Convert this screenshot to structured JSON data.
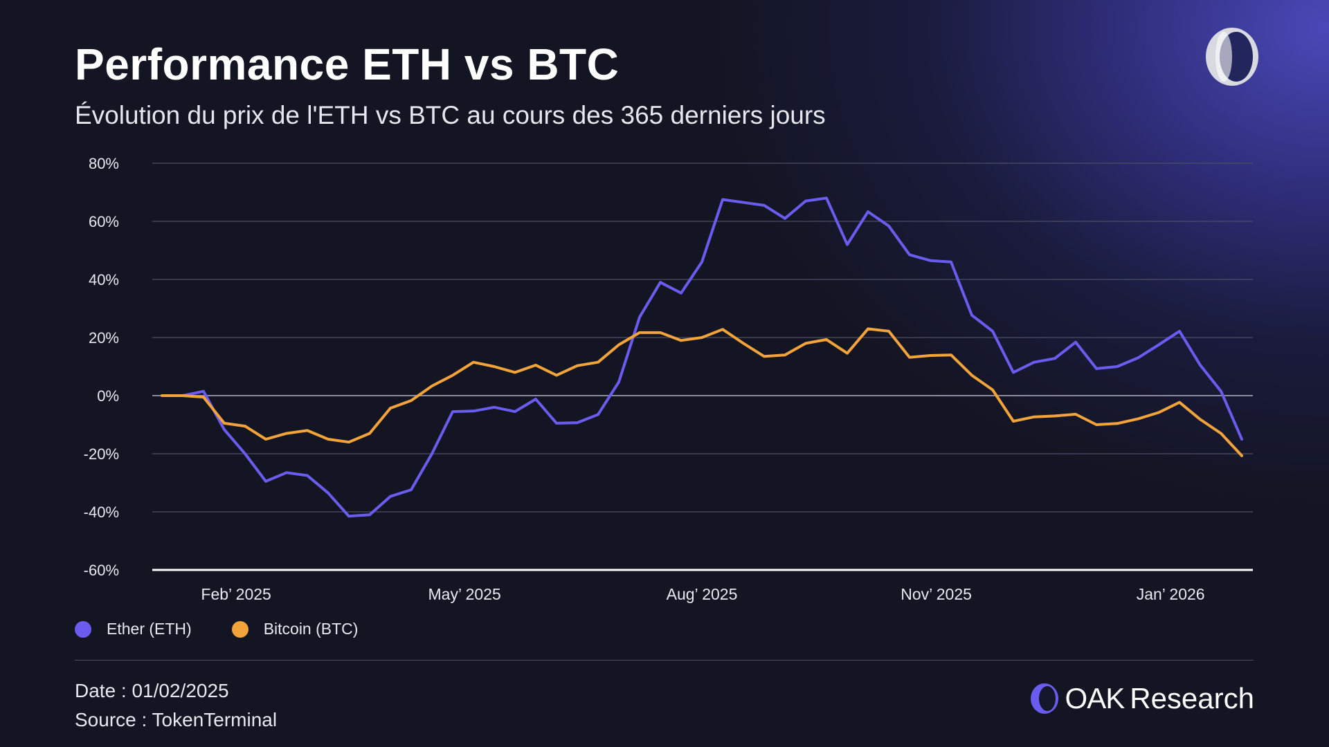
{
  "header": {
    "title": "Performance ETH vs BTC",
    "subtitle": "Évolution du prix de l'ETH vs BTC au cours des 365 derniers jours"
  },
  "footer": {
    "date": "Date : 01/02/2025",
    "source": "Source : TokenTerminal",
    "brand_bold": "OAK",
    "brand_rest": "Research"
  },
  "colors": {
    "eth": "#6b5cf0",
    "btc": "#f2a33a",
    "grid": "#4c4e66",
    "axis": "#ffffff"
  },
  "chart_data": {
    "type": "line",
    "title": "",
    "xlabel": "",
    "ylabel": "",
    "ylim": [
      -60,
      80
    ],
    "y_ticks": [
      80,
      60,
      40,
      20,
      0,
      -20,
      -40,
      -60
    ],
    "y_tick_labels": [
      "80%",
      "60%",
      "40%",
      "20%",
      "0%",
      "-20%",
      "-40%",
      "-60%"
    ],
    "grid": true,
    "legend": "bottom-left",
    "x_ticks": [
      {
        "label": "Feb’ 2025",
        "at": "2025-01-28"
      },
      {
        "label": "May’ 2025",
        "at": "2025-04-15"
      },
      {
        "label": "Aug’ 2025",
        "at": "2025-07-04"
      },
      {
        "label": "Nov’ 2025",
        "at": "2025-09-21"
      },
      {
        "label": "Jan’ 2026",
        "at": "2025-12-09"
      }
    ],
    "x": [
      "2025-01-03",
      "2025-01-10",
      "2025-01-17",
      "2025-01-24",
      "2025-01-31",
      "2025-02-07",
      "2025-02-14",
      "2025-02-21",
      "2025-02-28",
      "2025-03-07",
      "2025-03-14",
      "2025-03-21",
      "2025-03-28",
      "2025-04-04",
      "2025-04-11",
      "2025-04-18",
      "2025-04-25",
      "2025-05-02",
      "2025-05-09",
      "2025-05-16",
      "2025-05-23",
      "2025-05-30",
      "2025-06-06",
      "2025-06-13",
      "2025-06-20",
      "2025-06-27",
      "2025-07-04",
      "2025-07-11",
      "2025-07-18",
      "2025-07-25",
      "2025-08-01",
      "2025-08-08",
      "2025-08-15",
      "2025-08-22",
      "2025-08-29",
      "2025-09-05",
      "2025-09-12",
      "2025-09-19",
      "2025-09-26",
      "2025-10-03",
      "2025-10-10",
      "2025-10-17",
      "2025-10-24",
      "2025-10-31",
      "2025-11-07",
      "2025-11-14",
      "2025-11-21",
      "2025-11-28",
      "2025-12-05",
      "2025-12-12",
      "2025-12-19",
      "2025-12-26",
      "2026-01-02"
    ],
    "series": [
      {
        "name": "Ether (ETH)",
        "color": "#6b5cf0",
        "values": [
          0,
          0,
          1.5,
          -11.7,
          -20,
          -29.5,
          -26.5,
          -27.5,
          -33.5,
          -41.5,
          -41,
          -34.7,
          -32.4,
          -20,
          -5.5,
          -5.3,
          -4,
          -5.5,
          -1.2,
          -9.5,
          -9.3,
          -6.5,
          4.7,
          27,
          39,
          35.3,
          46,
          67.5,
          66.5,
          65.5,
          61,
          67,
          68,
          52,
          63.3,
          58.4,
          48.5,
          46.5,
          46,
          27.7,
          22.2,
          8,
          11.5,
          12.8,
          18.4,
          9.3,
          10,
          13,
          17.5,
          22.2,
          10.5,
          1.5,
          -15
        ]
      },
      {
        "name": "Bitcoin (BTC)",
        "color": "#f2a33a",
        "values": [
          0,
          0,
          -0.5,
          -9.5,
          -10.5,
          -15,
          -13,
          -12,
          -15,
          -16,
          -13,
          -4.3,
          -1.7,
          3.3,
          7,
          11.5,
          10,
          8,
          10.5,
          7,
          10.3,
          11.5,
          17.5,
          21.7,
          21.7,
          19,
          20,
          22.8,
          18,
          13.5,
          14,
          18,
          19.3,
          14.6,
          23,
          22.2,
          13.2,
          13.8,
          14,
          7,
          2,
          -8.8,
          -7.3,
          -7,
          -6.4,
          -10,
          -9.6,
          -8,
          -5.8,
          -2.3,
          -8.2,
          -13,
          -20.7
        ]
      }
    ]
  }
}
